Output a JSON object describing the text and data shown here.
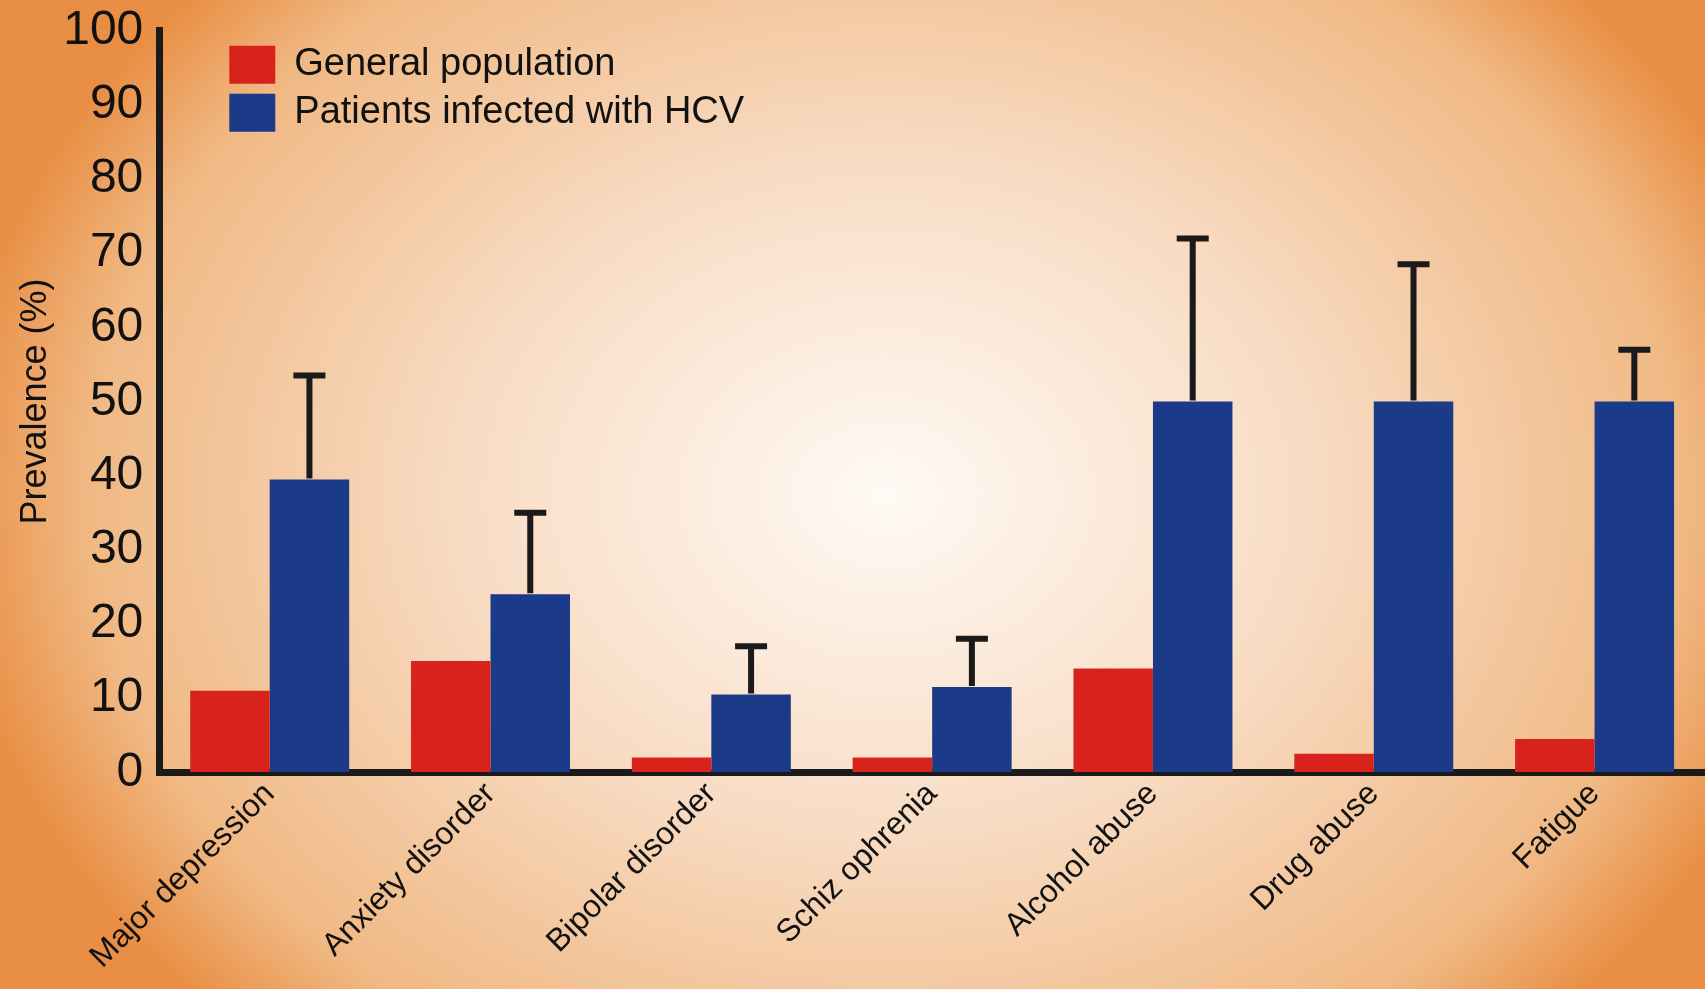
{
  "chart_data": {
    "type": "bar",
    "ylabel": "Prevalence (%)",
    "categories": [
      "Major depression",
      "Anxiety disorder",
      "Bipolar disorder",
      "Schiz ophrenia",
      "Alcohol abuse",
      "Drug abuse",
      "Fatigue"
    ],
    "series": [
      {
        "name": "General population",
        "color": "#d8231c",
        "values": [
          11,
          15,
          2,
          2,
          14,
          2.5,
          4.5
        ]
      },
      {
        "name": "Patients infected with HCV",
        "color": "#1b3a87",
        "values": [
          39.5,
          24,
          10.5,
          11.5,
          50,
          50,
          50
        ],
        "errors": [
          [
            39.5,
            53.5
          ],
          [
            24,
            35
          ],
          [
            10.5,
            17
          ],
          [
            11.5,
            18
          ],
          [
            50,
            72
          ],
          [
            50,
            68.5
          ],
          [
            50,
            57
          ]
        ]
      }
    ],
    "ylim": [
      0,
      100
    ],
    "yticks": [
      0,
      10,
      20,
      30,
      40,
      50,
      60,
      70,
      80,
      90,
      100
    ],
    "grid": false,
    "legend": "top left"
  }
}
